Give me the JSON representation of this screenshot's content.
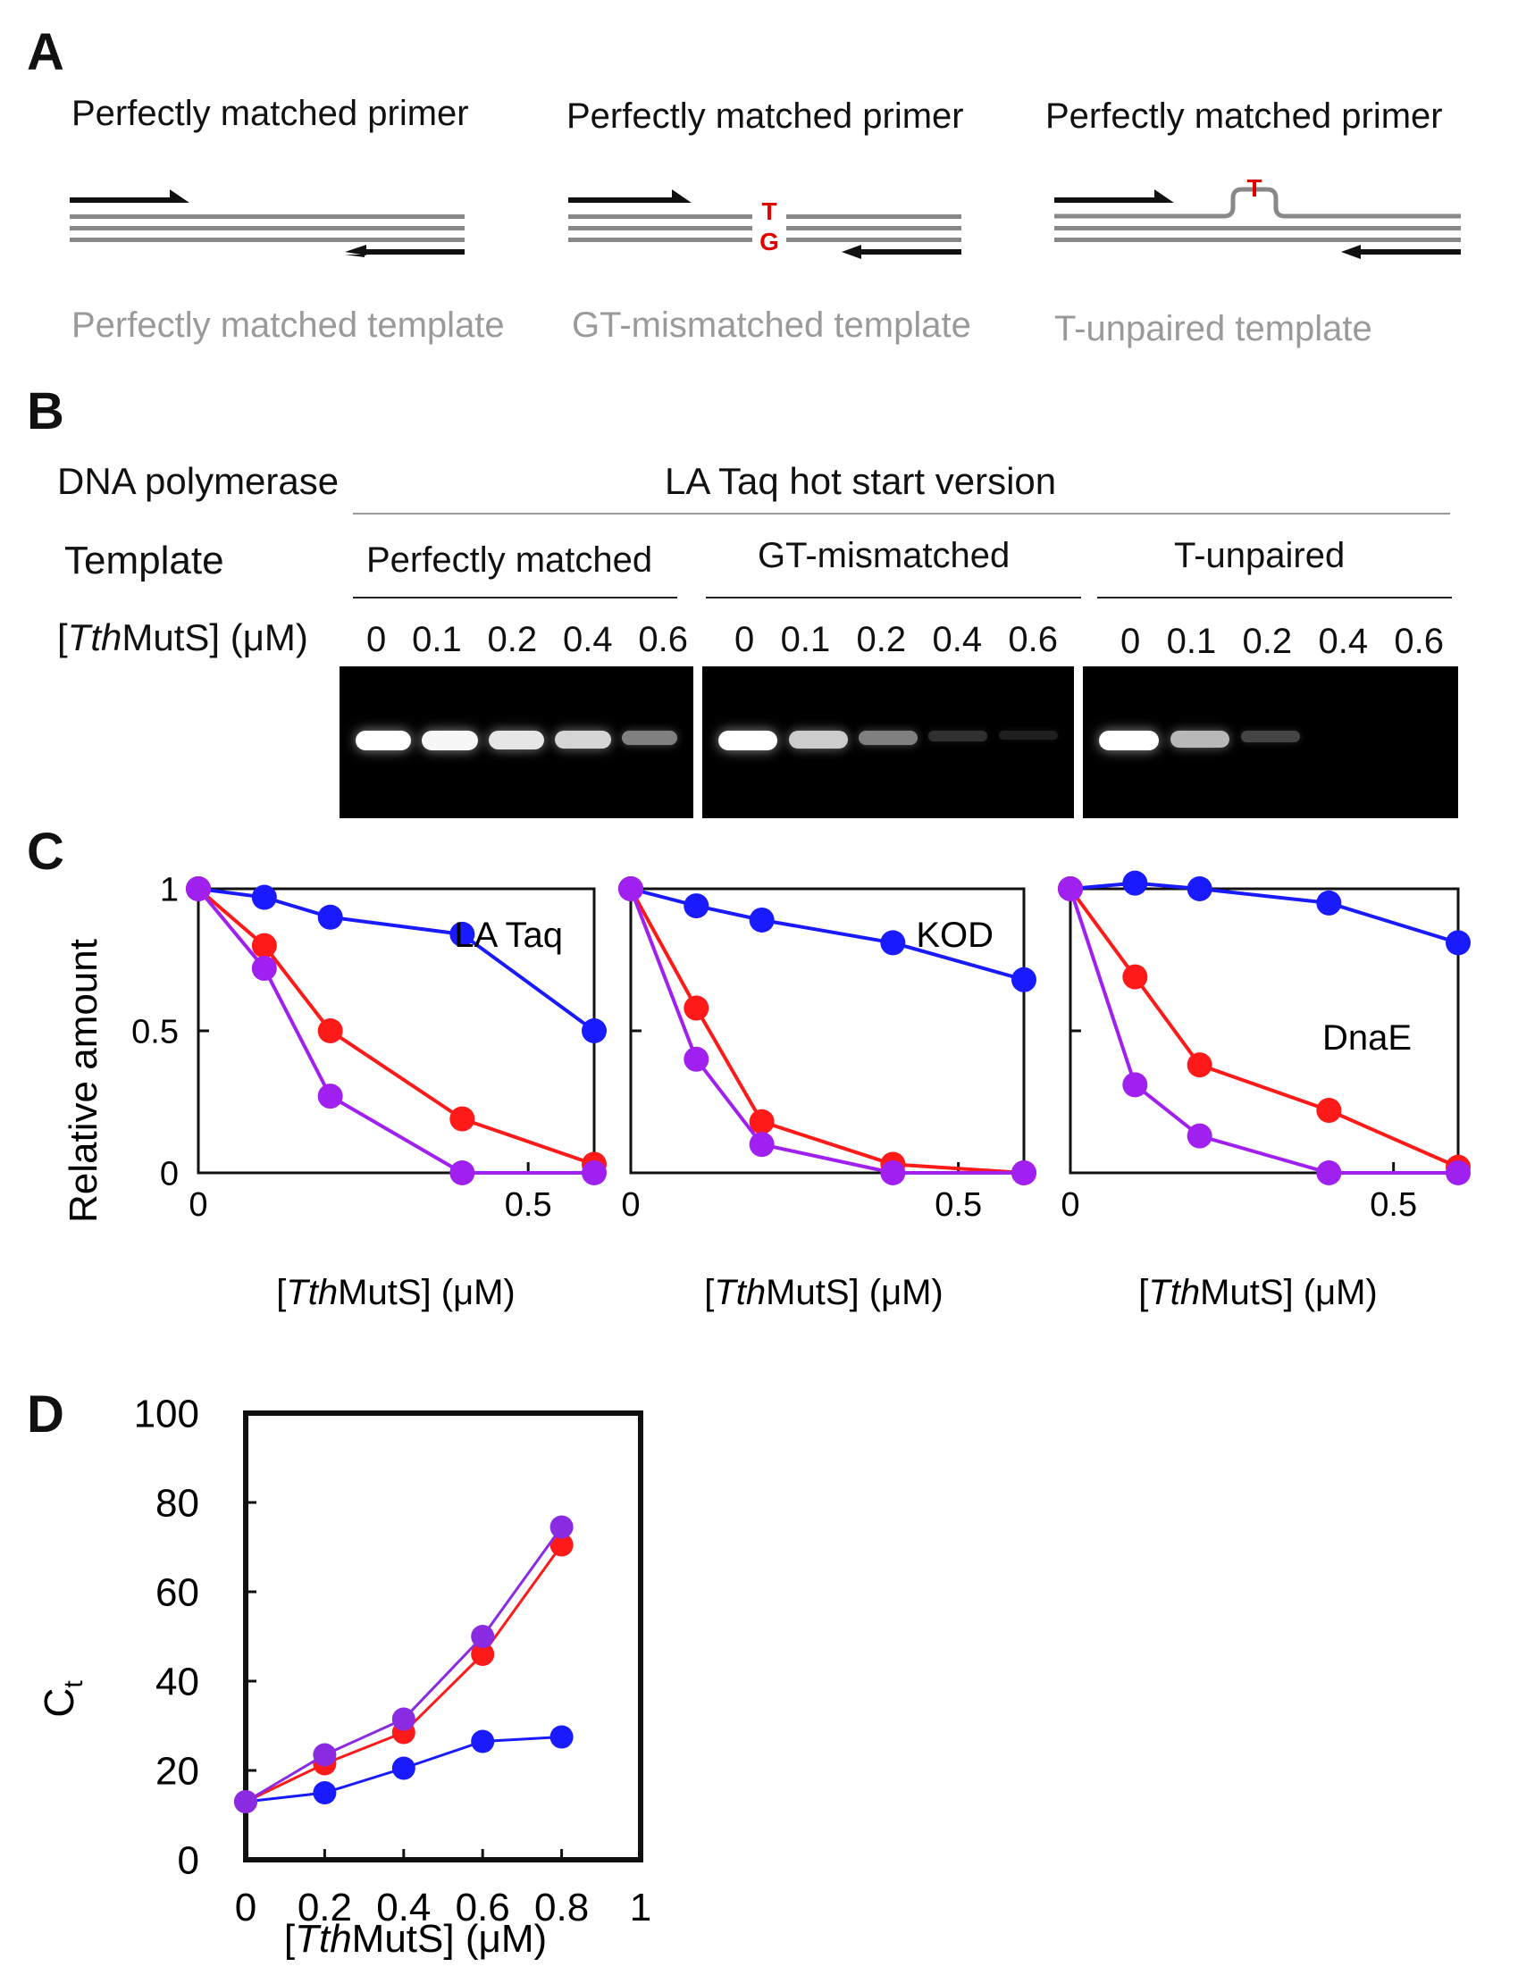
{
  "panelA": {
    "label": "A",
    "diagrams": [
      {
        "primer_label": "Perfectly matched primer",
        "template_label": "Perfectly matched template",
        "kind": "match"
      },
      {
        "primer_label": "Perfectly matched primer",
        "template_label": "GT-mismatched template",
        "kind": "mismatch",
        "top_base": "T",
        "bottom_base": "G"
      },
      {
        "primer_label": "Perfectly matched primer",
        "template_label": "T-unpaired template",
        "kind": "unpaired",
        "loop_base": "T"
      }
    ]
  },
  "panelB": {
    "label": "B",
    "polymerase_label": "DNA polymerase",
    "polymerase_value": "LA Taq hot start version",
    "template_label": "Template",
    "conc_label_pre": "[",
    "conc_label_italic": "Tth",
    "conc_label_post": "MutS] (μM)",
    "groups": [
      {
        "name": "Perfectly matched",
        "concentrations": [
          "0",
          "0.1",
          "0.2",
          "0.4",
          "0.6"
        ],
        "band_intensity": [
          1.0,
          0.97,
          0.9,
          0.84,
          0.5
        ]
      },
      {
        "name": "GT-mismatched",
        "concentrations": [
          "0",
          "0.1",
          "0.2",
          "0.4",
          "0.6"
        ],
        "band_intensity": [
          1.0,
          0.8,
          0.5,
          0.19,
          0.03
        ]
      },
      {
        "name": "T-unpaired",
        "concentrations": [
          "0",
          "0.1",
          "0.2",
          "0.4",
          "0.6"
        ],
        "band_intensity": [
          1.0,
          0.72,
          0.27,
          0.0,
          0.0
        ]
      }
    ]
  },
  "panelC": {
    "label": "C",
    "ylabel": "Relative amount",
    "xlabel_pre": "[",
    "xlabel_italic": "Tth",
    "xlabel_post": "MutS] (μM)",
    "colors": {
      "perfect": "#1a1aff",
      "gt": "#ff1a1a",
      "t_unpaired": "#a020f0"
    }
  },
  "panelD": {
    "label": "D",
    "ylabel": "C",
    "ylabel_sub": "t",
    "xlabel_pre": "[",
    "xlabel_italic": "Tth",
    "xlabel_post": "MutS] (μM)"
  },
  "chart_data": [
    {
      "type": "line",
      "annotation": "LA Taq",
      "x": [
        0,
        0.1,
        0.2,
        0.4,
        0.6
      ],
      "xlim": [
        0,
        0.6
      ],
      "ylim": [
        0,
        1
      ],
      "xticks": [
        "0",
        "0.5"
      ],
      "yticks": [
        "0",
        "0.5",
        "1"
      ],
      "series": [
        {
          "color": "#1a1aff",
          "values": [
            1.0,
            0.97,
            0.9,
            0.84,
            0.5
          ]
        },
        {
          "color": "#ff1a1a",
          "values": [
            1.0,
            0.8,
            0.5,
            0.19,
            0.03
          ]
        },
        {
          "color": "#a020f0",
          "values": [
            1.0,
            0.72,
            0.27,
            0.0,
            0.0
          ]
        }
      ]
    },
    {
      "type": "line",
      "annotation": "KOD",
      "x": [
        0,
        0.1,
        0.2,
        0.4,
        0.6
      ],
      "xlim": [
        0,
        0.6
      ],
      "ylim": [
        0,
        1
      ],
      "xticks": [
        "0",
        "0.5"
      ],
      "yticks": [],
      "series": [
        {
          "color": "#1a1aff",
          "values": [
            1.0,
            0.94,
            0.89,
            0.81,
            0.68
          ]
        },
        {
          "color": "#ff1a1a",
          "values": [
            1.0,
            0.58,
            0.18,
            0.03,
            0.0
          ]
        },
        {
          "color": "#a020f0",
          "values": [
            1.0,
            0.4,
            0.1,
            0.0,
            0.0
          ]
        }
      ]
    },
    {
      "type": "line",
      "annotation": "DnaE",
      "x": [
        0,
        0.1,
        0.2,
        0.4,
        0.6
      ],
      "xlim": [
        0,
        0.6
      ],
      "ylim": [
        0,
        1
      ],
      "xticks": [
        "0",
        "0.5"
      ],
      "yticks": [],
      "series": [
        {
          "color": "#1a1aff",
          "values": [
            1.0,
            1.02,
            1.0,
            0.95,
            0.81
          ]
        },
        {
          "color": "#ff1a1a",
          "values": [
            1.0,
            0.69,
            0.38,
            0.22,
            0.02
          ]
        },
        {
          "color": "#a020f0",
          "values": [
            1.0,
            0.31,
            0.13,
            0.0,
            0.0
          ]
        }
      ]
    },
    {
      "type": "line",
      "x": [
        0,
        0.2,
        0.4,
        0.6,
        0.8
      ],
      "xlim": [
        0,
        1
      ],
      "ylim": [
        0,
        100
      ],
      "xticks": [
        "0",
        "0.2",
        "0.4",
        "0.6",
        "0.8",
        "1"
      ],
      "yticks": [
        "0",
        "20",
        "40",
        "60",
        "80",
        "100"
      ],
      "series": [
        {
          "color": "#1a1aff",
          "values": [
            13,
            15,
            20.5,
            26.5,
            27.5
          ]
        },
        {
          "color": "#ff1a1a",
          "values": [
            13,
            21.5,
            28.5,
            46,
            70.5
          ]
        },
        {
          "color": "#8a2be2",
          "values": [
            13,
            23.5,
            31.5,
            50,
            74.5
          ]
        }
      ]
    }
  ]
}
